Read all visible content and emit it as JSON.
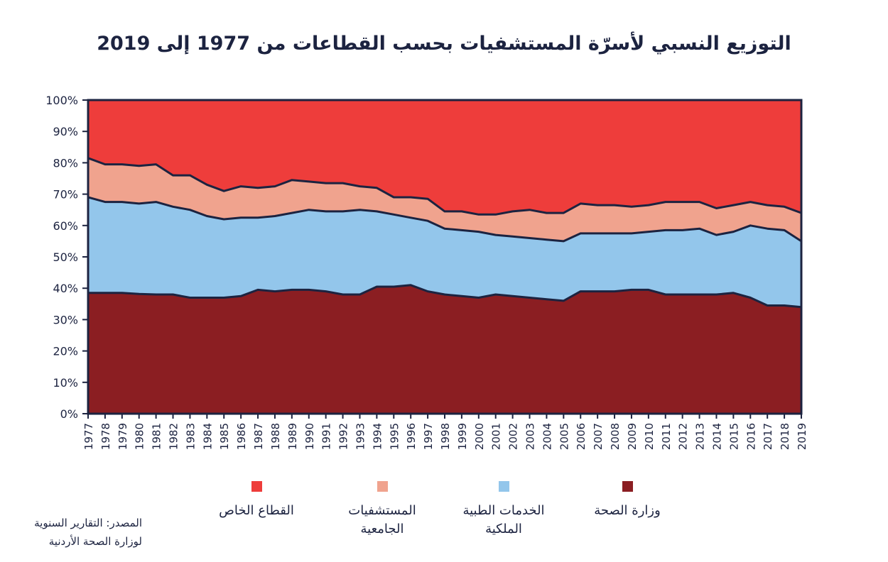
{
  "chart_data": {
    "type": "area",
    "stacked": true,
    "title": "التوزيع النسبي لأسرّة المستشفيات بحسب القطاعات من 1977 إلى 2019",
    "x": [
      1977,
      1978,
      1979,
      1980,
      1981,
      1982,
      1983,
      1984,
      1985,
      1986,
      1987,
      1988,
      1989,
      1990,
      1991,
      1992,
      1993,
      1994,
      1995,
      1996,
      1997,
      1998,
      1999,
      2000,
      2001,
      2002,
      2003,
      2004,
      2005,
      2006,
      2007,
      2008,
      2009,
      2010,
      2011,
      2012,
      2013,
      2014,
      2015,
      2016,
      2017,
      2018,
      2019
    ],
    "ylim": [
      0,
      100
    ],
    "yticks": [
      "0%",
      "10%",
      "20%",
      "30%",
      "40%",
      "50%",
      "60%",
      "70%",
      "80%",
      "90%",
      "100%"
    ],
    "legend_position": "bottom",
    "series": [
      {
        "name": "وزارة الصحة",
        "color": "#8b1e22",
        "values": [
          38.5,
          38.5,
          38.5,
          38.2,
          38.0,
          38.0,
          37.0,
          37.0,
          37.0,
          37.5,
          39.5,
          39.0,
          39.5,
          39.5,
          39.0,
          38.0,
          38.0,
          40.5,
          40.5,
          41.0,
          39.0,
          38.0,
          37.5,
          37.0,
          38.0,
          37.5,
          37.0,
          36.5,
          36.0,
          39.0,
          39.0,
          39.0,
          39.5,
          39.5,
          38.0,
          38.0,
          38.0,
          38.0,
          38.5,
          37.0,
          34.5,
          34.5,
          34.0
        ]
      },
      {
        "name": "الخدمات الطبية الملكية",
        "color": "#93c6eb",
        "values": [
          30.5,
          29.0,
          29.0,
          28.8,
          29.5,
          28.0,
          28.0,
          26.0,
          25.0,
          25.0,
          23.0,
          24.0,
          24.5,
          25.5,
          25.5,
          26.5,
          27.0,
          24.0,
          23.0,
          21.5,
          22.5,
          21.0,
          21.0,
          21.0,
          19.0,
          19.0,
          19.0,
          19.0,
          19.0,
          18.5,
          18.5,
          18.5,
          18.0,
          18.5,
          20.5,
          20.5,
          21.0,
          19.0,
          19.5,
          23.0,
          24.5,
          24.0,
          21.0
        ]
      },
      {
        "name": "المستشفيات الجامعية",
        "color": "#f0a38e",
        "values": [
          12.5,
          12.0,
          12.0,
          12.0,
          12.0,
          10.0,
          11.0,
          10.0,
          9.0,
          10.0,
          9.5,
          9.5,
          10.5,
          9.0,
          9.0,
          9.0,
          7.5,
          7.5,
          5.5,
          6.5,
          7.0,
          5.5,
          6.0,
          5.5,
          6.5,
          8.0,
          9.0,
          8.5,
          9.0,
          9.5,
          9.0,
          9.0,
          8.5,
          8.5,
          9.0,
          9.0,
          8.5,
          8.5,
          8.5,
          7.5,
          7.5,
          7.5,
          9.0
        ]
      },
      {
        "name": "القطاع الخاص",
        "color": "#ee3d3b",
        "values": [
          18.5,
          20.5,
          20.5,
          21.0,
          20.5,
          24.0,
          24.0,
          27.0,
          29.0,
          27.5,
          28.0,
          27.5,
          25.5,
          26.0,
          26.5,
          26.5,
          27.5,
          28.0,
          31.0,
          31.0,
          31.5,
          35.5,
          35.5,
          36.5,
          36.5,
          35.5,
          35.0,
          36.0,
          36.0,
          33.0,
          33.5,
          33.5,
          34.0,
          33.5,
          32.5,
          32.5,
          32.5,
          34.5,
          33.5,
          32.5,
          33.5,
          34.0,
          36.0
        ]
      }
    ],
    "legend_order": [
      "القطاع الخاص",
      "المستشفيات الجامعية",
      "الخدمات الطبية الملكية",
      "وزارة الصحة"
    ]
  },
  "legend": {
    "private": {
      "label": "القطاع الخاص",
      "color": "#ee3d3b"
    },
    "university": {
      "label": "المستشفيات الجامعية",
      "color": "#f0a38e"
    },
    "military": {
      "label": "الخدمات الطبية الملكية",
      "color": "#93c6eb"
    },
    "ministry": {
      "label": "وزارة الصحة",
      "color": "#8b1e22"
    }
  },
  "source_note": "المصدر: التقارير السنوية لوزارة الصحة الأردنية"
}
